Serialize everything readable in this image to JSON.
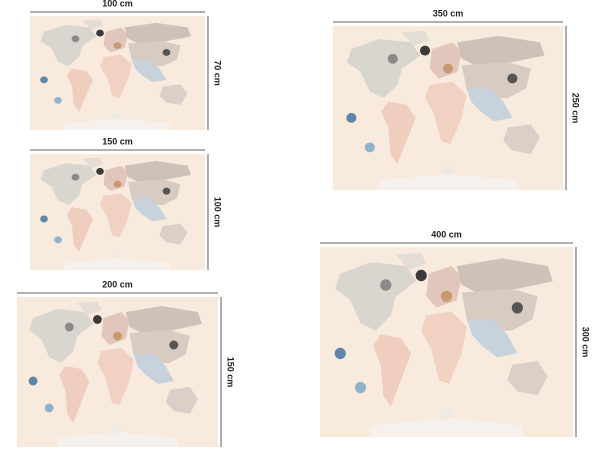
{
  "panels": [
    {
      "width_label": "100 cm",
      "height_label": "70 cm"
    },
    {
      "width_label": "150 cm",
      "height_label": "100 cm"
    },
    {
      "width_label": "200 cm",
      "height_label": "150 cm"
    },
    {
      "width_label": "350 cm",
      "height_label": "250 cm"
    },
    {
      "width_label": "400 cm",
      "height_label": "300 cm"
    }
  ]
}
